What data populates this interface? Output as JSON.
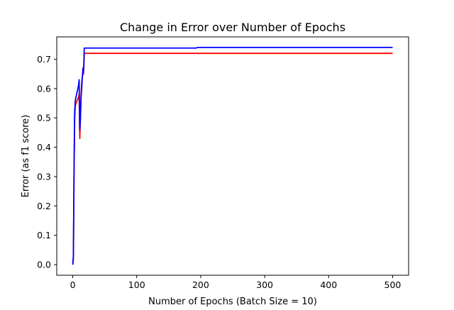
{
  "chart_data": {
    "type": "line",
    "title": "Change in Error over Number of Epochs",
    "xlabel": "Number of Epochs (Batch Size = 10)",
    "ylabel": "Error (as f1 score)",
    "xlim": [
      -25,
      525
    ],
    "ylim": [
      -0.036,
      0.776
    ],
    "xticks": [
      0,
      100,
      200,
      300,
      400,
      500
    ],
    "yticks": [
      0.0,
      0.1,
      0.2,
      0.3,
      0.4,
      0.5,
      0.6,
      0.7
    ],
    "xtick_labels": [
      "0",
      "100",
      "200",
      "300",
      "400",
      "500"
    ],
    "ytick_labels": [
      "0.0",
      "0.1",
      "0.2",
      "0.3",
      "0.4",
      "0.5",
      "0.6",
      "0.7"
    ],
    "grid": false,
    "series": [
      {
        "color": "#ff0000",
        "x": [
          0,
          1,
          2,
          3,
          4,
          5,
          6,
          7,
          8,
          9,
          10,
          11,
          12,
          13,
          14,
          15,
          16,
          17,
          18,
          19,
          20,
          50,
          100,
          200,
          300,
          400,
          500
        ],
        "y": [
          0.0,
          0.02,
          0.3,
          0.5,
          0.54,
          0.55,
          0.555,
          0.56,
          0.565,
          0.57,
          0.58,
          0.43,
          0.5,
          0.58,
          0.62,
          0.64,
          0.65,
          0.65,
          0.72,
          0.72,
          0.72,
          0.72,
          0.72,
          0.72,
          0.72,
          0.72,
          0.72
        ]
      },
      {
        "color": "#0000ff",
        "x": [
          0,
          1,
          2,
          3,
          4,
          5,
          6,
          7,
          8,
          9,
          10,
          11,
          12,
          13,
          14,
          15,
          16,
          17,
          18,
          19,
          20,
          50,
          100,
          150,
          193,
          195,
          200,
          300,
          400,
          500
        ],
        "y": [
          0.0,
          0.03,
          0.32,
          0.52,
          0.56,
          0.57,
          0.58,
          0.59,
          0.6,
          0.61,
          0.63,
          0.46,
          0.5,
          0.57,
          0.6,
          0.64,
          0.67,
          0.66,
          0.738,
          0.738,
          0.738,
          0.738,
          0.738,
          0.738,
          0.738,
          0.74,
          0.74,
          0.74,
          0.74,
          0.74
        ]
      }
    ]
  }
}
